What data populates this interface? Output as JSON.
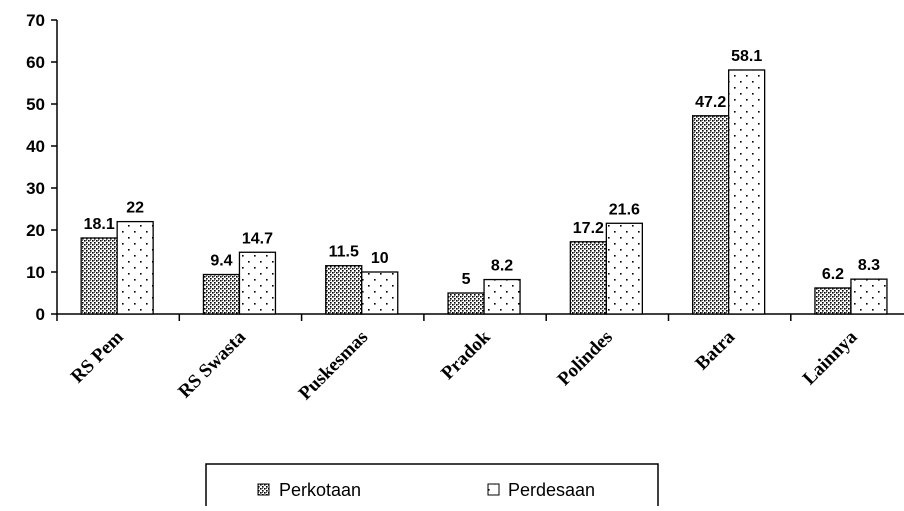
{
  "chart_data": {
    "type": "bar",
    "title": "",
    "xlabel": "",
    "ylabel": "",
    "categories": [
      "RS Pem",
      "RS Swasta",
      "Puskesmas",
      "Pradok",
      "Polindes",
      "Batra",
      "Lainnya"
    ],
    "series": [
      {
        "name": "Perkotaan",
        "values": [
          18.1,
          9.4,
          11.5,
          5,
          17.2,
          47.2,
          6.2
        ],
        "data_labels": [
          "18.1",
          "9.4",
          "11.5",
          "5",
          "17.2",
          "47.2",
          "6.2"
        ],
        "pattern": "dense-checker"
      },
      {
        "name": "Perdesaan",
        "values": [
          22,
          14.7,
          10,
          8.2,
          21.6,
          58.1,
          8.3
        ],
        "data_labels": [
          "22",
          "14.7",
          "10",
          "8.2",
          "21.6",
          "58.1",
          "8.3"
        ],
        "pattern": "sparse-dots"
      }
    ],
    "ylim": [
      0,
      70
    ],
    "yticks": [
      "0",
      "10",
      "20",
      "30",
      "40",
      "50",
      "60",
      "70"
    ],
    "grid": false,
    "legend_position": "bottom",
    "colors": {
      "bar_fill": "#ffffff",
      "bar_pattern": "#000000",
      "axis": "#000000"
    }
  }
}
